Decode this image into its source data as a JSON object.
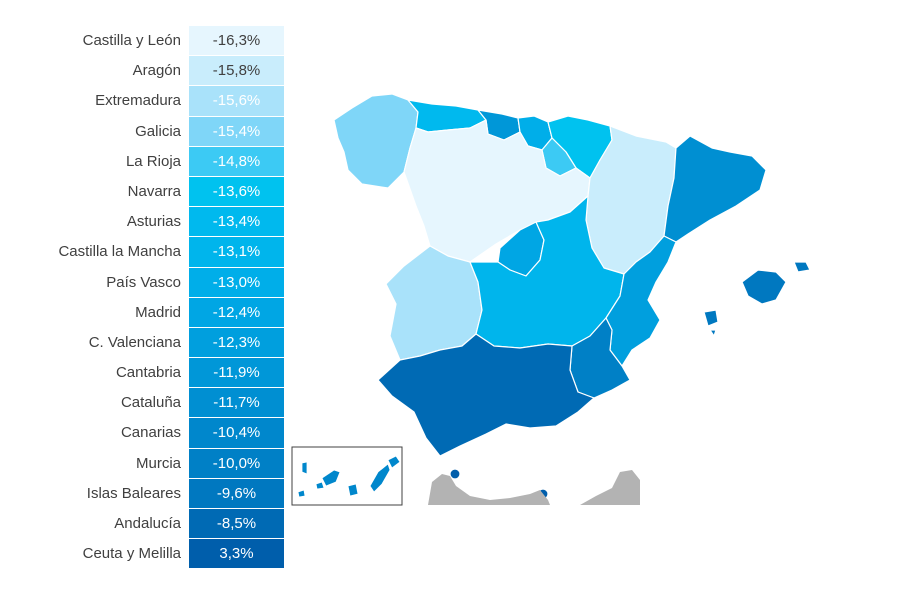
{
  "legend": {
    "rows": [
      {
        "label": "Castilla y León",
        "value": "-16,3%",
        "color": "#e6f6fe",
        "text_color": "#404040"
      },
      {
        "label": "Aragón",
        "value": "-15,8%",
        "color": "#c9edfc",
        "text_color": "#404040"
      },
      {
        "label": "Extremadura",
        "value": "-15,6%",
        "color": "#a9e2fa",
        "text_color": "#ffffff"
      },
      {
        "label": "Galicia",
        "value": "-15,4%",
        "color": "#7fd6f8",
        "text_color": "#ffffff"
      },
      {
        "label": "La Rioja",
        "value": "-14,8%",
        "color": "#3ccaf4",
        "text_color": "#ffffff"
      },
      {
        "label": "Navarra",
        "value": "-13,6%",
        "color": "#00c2ef",
        "text_color": "#ffffff"
      },
      {
        "label": "Asturias",
        "value": "-13,4%",
        "color": "#00b9ee",
        "text_color": "#ffffff"
      },
      {
        "label": "Castilla la Mancha",
        "value": "-13,1%",
        "color": "#00b5ec",
        "text_color": "#ffffff"
      },
      {
        "label": "País Vasco",
        "value": "-13,0%",
        "color": "#00aee9",
        "text_color": "#ffffff"
      },
      {
        "label": "Madrid",
        "value": "-12,4%",
        "color": "#00a6e4",
        "text_color": "#ffffff"
      },
      {
        "label": "C. Valenciana",
        "value": "-12,3%",
        "color": "#009fde",
        "text_color": "#ffffff"
      },
      {
        "label": "Cantabria",
        "value": "-11,9%",
        "color": "#0097d8",
        "text_color": "#ffffff"
      },
      {
        "label": "Cataluña",
        "value": "-11,7%",
        "color": "#008fd2",
        "text_color": "#ffffff"
      },
      {
        "label": "Canarias",
        "value": "-10,4%",
        "color": "#0087cc",
        "text_color": "#ffffff"
      },
      {
        "label": "Murcia",
        "value": "-10,0%",
        "color": "#0080c6",
        "text_color": "#ffffff"
      },
      {
        "label": "Islas Baleares",
        "value": "-9,6%",
        "color": "#0078c0",
        "text_color": "#ffffff"
      },
      {
        "label": "Andalucía",
        "value": "-8,5%",
        "color": "#006ab4",
        "text_color": "#ffffff"
      },
      {
        "label": "Ceuta y Melilla",
        "value": "3,3%",
        "color": "#005eab",
        "text_color": "#ffffff"
      }
    ]
  },
  "map": {
    "other_territory_color": "#b3b3b3",
    "border_color": "#ffffff",
    "inset_border_color": "#404040"
  }
}
